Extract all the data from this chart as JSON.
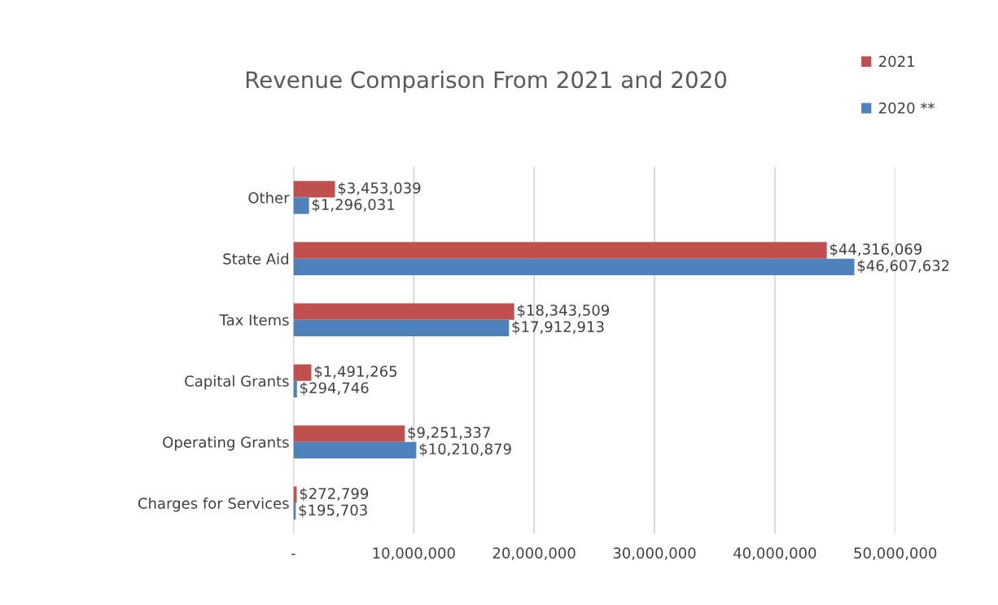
{
  "chart_data": {
    "type": "bar",
    "orientation": "horizontal",
    "title": "Revenue Comparison From 2021 and 2020",
    "categories": [
      "Other",
      "State Aid",
      "Tax Items",
      "Capital Grants",
      "Operating Grants",
      "Charges for Services"
    ],
    "series": [
      {
        "name": "2021",
        "color": "#c0504d",
        "values": [
          3453039,
          44316069,
          18343509,
          1491265,
          9251337,
          272799
        ],
        "value_labels": [
          "$3,453,039",
          "$44,316,069",
          "$18,343,509",
          "$1,491,265",
          "$9,251,337",
          "$272,799"
        ]
      },
      {
        "name": "2020 **",
        "color": "#4f81bd",
        "values": [
          1296031,
          46607632,
          17912913,
          294746,
          10210879,
          195703
        ],
        "value_labels": [
          "$1,296,031",
          "$46,607,632",
          "$17,912,913",
          "$294,746",
          "$10,210,879",
          "$195,703"
        ]
      }
    ],
    "xlim": [
      0,
      50000000
    ],
    "xticks": [
      {
        "value": 0,
        "label": "-"
      },
      {
        "value": 10000000,
        "label": "10,000,000"
      },
      {
        "value": 20000000,
        "label": "20,000,000"
      },
      {
        "value": 30000000,
        "label": "30,000,000"
      },
      {
        "value": 40000000,
        "label": "40,000,000"
      },
      {
        "value": 50000000,
        "label": "50,000,000"
      }
    ],
    "grid": "x",
    "legend": "top right"
  }
}
